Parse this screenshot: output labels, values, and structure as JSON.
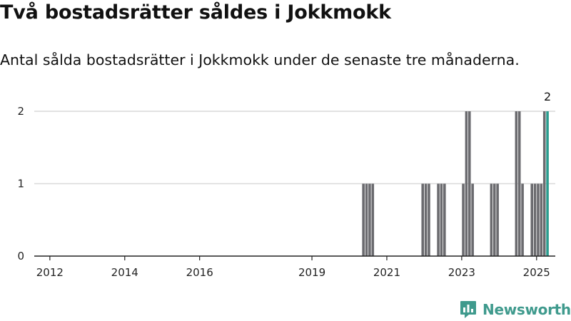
{
  "header": {
    "title": "Två bostadsrätter såldes i Jokkmokk",
    "subtitle": "Antal sålda bostadsrätter i Jokkmokk under de senaste tre månaderna."
  },
  "brand": {
    "name": "Newsworthy",
    "color": "#3f9a8d",
    "icon": "newsworthy-logo-icon"
  },
  "colors": {
    "bar": "#6b6b6f",
    "highlight": "#2a9d8f",
    "grid": "#d9d9d9",
    "axis": "#222222"
  },
  "chart_data": {
    "type": "bar",
    "x_unit": "month",
    "ylim": [
      0,
      2
    ],
    "xlim": [
      "2011-08",
      "2025-07"
    ],
    "y_ticks": [
      0,
      1,
      2
    ],
    "x_ticks": [
      "2012",
      "2014",
      "2016",
      "2019",
      "2021",
      "2023",
      "2025"
    ],
    "grid": true,
    "series": [
      {
        "values": [
          {
            "x": "2020-05",
            "y": 1
          },
          {
            "x": "2020-06",
            "y": 1
          },
          {
            "x": "2020-07",
            "y": 1
          },
          {
            "x": "2020-08",
            "y": 1
          },
          {
            "x": "2021-12",
            "y": 1
          },
          {
            "x": "2022-01",
            "y": 1
          },
          {
            "x": "2022-02",
            "y": 1
          },
          {
            "x": "2022-05",
            "y": 1
          },
          {
            "x": "2022-06",
            "y": 1
          },
          {
            "x": "2022-07",
            "y": 1
          },
          {
            "x": "2023-01",
            "y": 1
          },
          {
            "x": "2023-02",
            "y": 2
          },
          {
            "x": "2023-03",
            "y": 2
          },
          {
            "x": "2023-04",
            "y": 1
          },
          {
            "x": "2023-10",
            "y": 1
          },
          {
            "x": "2023-11",
            "y": 1
          },
          {
            "x": "2023-12",
            "y": 1
          },
          {
            "x": "2024-06",
            "y": 2
          },
          {
            "x": "2024-07",
            "y": 2
          },
          {
            "x": "2024-08",
            "y": 1
          },
          {
            "x": "2024-11",
            "y": 1
          },
          {
            "x": "2024-12",
            "y": 1
          },
          {
            "x": "2025-01",
            "y": 1
          },
          {
            "x": "2025-02",
            "y": 1
          },
          {
            "x": "2025-03",
            "y": 2
          }
        ]
      }
    ],
    "highlight": {
      "x": "2025-04",
      "y": 2,
      "label": "2"
    }
  }
}
